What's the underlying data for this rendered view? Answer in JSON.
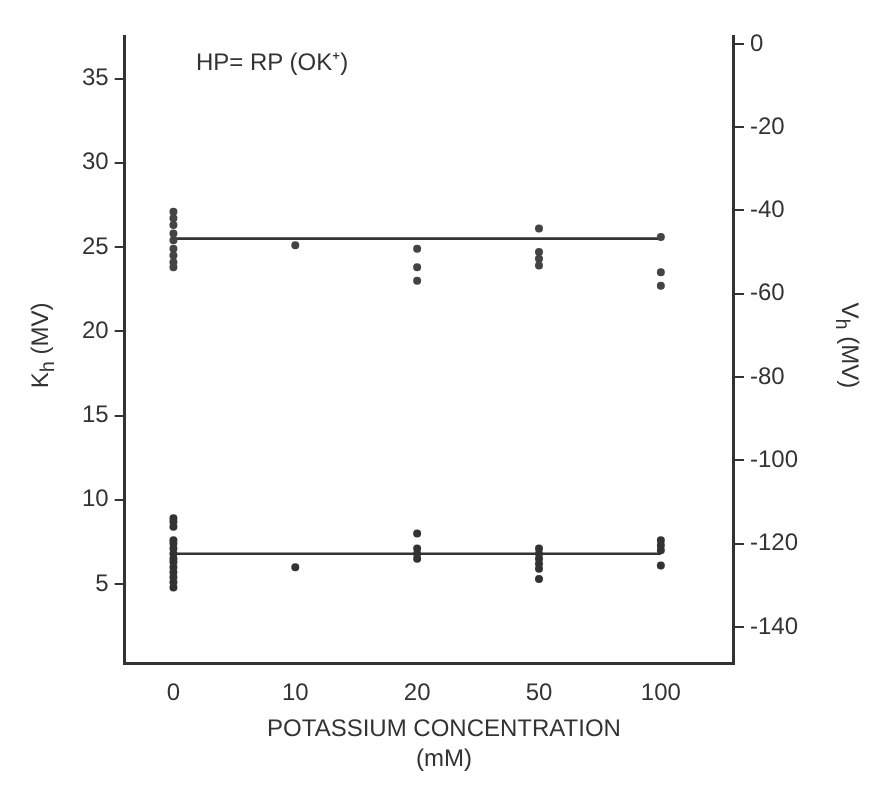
{
  "chart_data": {
    "type": "scatter",
    "xlabel": "POTASSIUM CONCENTRATION\n(mM)",
    "ylabel": "K$_{h}$ (MV)",
    "y2label": "V$_{h}$ (MV)",
    "annotations": [
      "HP= RP (OK⁺)"
    ],
    "categories": [
      "0",
      "10",
      "20",
      "50",
      "100"
    ],
    "ylim": [
      0.3,
      37.5
    ],
    "yticks": [
      5,
      10,
      15,
      20,
      25,
      30,
      35
    ],
    "y2lim": [
      -148.7,
      1.8
    ],
    "y2ticks": [
      0,
      -20,
      -40,
      -60,
      -80,
      -100,
      -120,
      -140
    ],
    "grid": false,
    "legend": false,
    "series": [
      {
        "marker": "circle",
        "color": "#444444",
        "x": [
          "0",
          "0",
          "0",
          "0",
          "0",
          "0",
          "0",
          "0",
          "0",
          "10",
          "20",
          "20",
          "20",
          "50",
          "50",
          "50",
          "50",
          "100",
          "100",
          "100"
        ],
        "values": [
          27.1,
          26.7,
          26.3,
          25.8,
          25.4,
          24.9,
          24.5,
          24.1,
          23.8,
          25.1,
          24.9,
          23.8,
          23.0,
          26.1,
          24.7,
          24.3,
          23.9,
          25.6,
          23.5,
          22.7
        ]
      },
      {
        "marker": "circle",
        "color": "#333333",
        "x": [
          "0",
          "0",
          "0",
          "0",
          "0",
          "0",
          "0",
          "0",
          "0",
          "0",
          "0",
          "0",
          "0",
          "0",
          "10",
          "20",
          "20",
          "20",
          "20",
          "50",
          "50",
          "50",
          "50",
          "50",
          "50",
          "100",
          "100",
          "100",
          "100"
        ],
        "values": [
          8.9,
          8.7,
          8.4,
          7.6,
          7.4,
          7.1,
          6.8,
          6.5,
          6.3,
          6.0,
          5.7,
          5.4,
          5.1,
          4.8,
          6.0,
          8.0,
          7.1,
          6.8,
          6.5,
          7.1,
          6.8,
          6.5,
          6.2,
          5.9,
          5.3,
          7.6,
          7.3,
          7.0,
          6.1
        ]
      },
      {
        "type": "line",
        "marker": "none",
        "color": "#333333",
        "values": [
          25.5,
          25.5,
          25.5,
          25.5,
          25.5
        ]
      },
      {
        "type": "line",
        "marker": "none",
        "color": "#333333",
        "values": [
          6.8,
          6.8,
          6.8,
          6.8,
          6.8
        ]
      }
    ]
  }
}
